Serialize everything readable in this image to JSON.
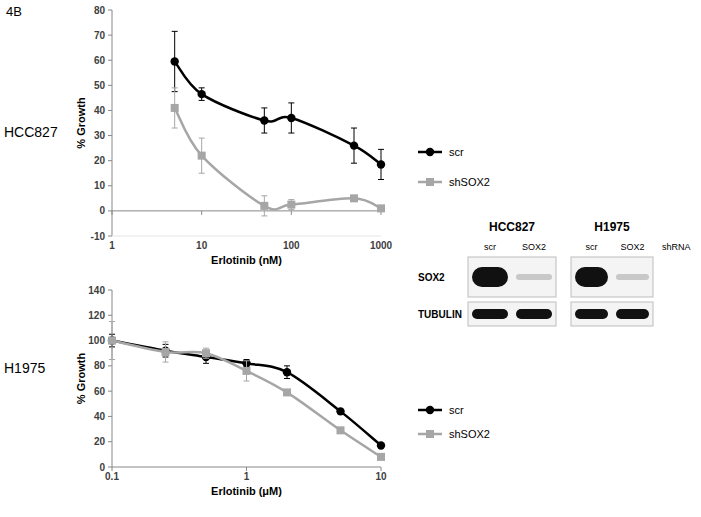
{
  "panel_label": "4B",
  "chart_data": [
    {
      "type": "line",
      "title": "HCC827",
      "x_label": "Erlotinib (nM)",
      "y_label": "% Growth",
      "log": "x",
      "grid": false,
      "legend": "right",
      "xlim": [
        1,
        1000
      ],
      "xticks": [
        1,
        10,
        100,
        1000
      ],
      "ylim": [
        -10,
        80
      ],
      "yticks": [
        -10,
        0,
        10,
        20,
        30,
        40,
        50,
        60,
        70,
        80
      ],
      "x": [
        5,
        10,
        50,
        100,
        500,
        1000
      ],
      "series": [
        {
          "name": "scr",
          "color": "#000000",
          "marker": "circle",
          "line_style": "solid",
          "values": [
            59.5,
            46.5,
            36,
            37,
            26,
            18.5
          ],
          "errors": [
            12,
            2.5,
            5,
            6,
            7,
            6
          ]
        },
        {
          "name": "shSOX2",
          "color": "#a6a6a6",
          "marker": "square",
          "line_style": "solid",
          "values": [
            41,
            22,
            2,
            2.5,
            5,
            1
          ],
          "errors": [
            8,
            7,
            4,
            2,
            0.5,
            1
          ]
        }
      ]
    },
    {
      "type": "line",
      "title": "H1975",
      "x_label": "Erlotinib (μM)",
      "y_label": "% Growth",
      "log": "x",
      "grid": false,
      "legend": "right",
      "xlim": [
        0.1,
        10
      ],
      "xticks": [
        0.1,
        1,
        10
      ],
      "ylim": [
        0,
        140
      ],
      "yticks": [
        0,
        20,
        40,
        60,
        80,
        100,
        120,
        140
      ],
      "x": [
        0.1,
        0.25,
        0.5,
        1,
        2,
        5,
        10
      ],
      "series": [
        {
          "name": "scr",
          "color": "#000000",
          "marker": "circle",
          "line_style": "solid",
          "values": [
            100,
            92,
            87,
            82,
            75,
            44,
            17
          ],
          "errors": [
            5,
            5,
            5,
            3,
            5,
            1,
            1
          ]
        },
        {
          "name": "shSOX2",
          "color": "#a6a6a6",
          "marker": "square",
          "line_style": "solid",
          "values": [
            100,
            91,
            90,
            76,
            59,
            29,
            8
          ],
          "errors": [
            15,
            8,
            4,
            8,
            2,
            1,
            2
          ]
        }
      ]
    }
  ],
  "blot": {
    "cell_lines": [
      {
        "name": "HCC827",
        "lanes": [
          "scr",
          "SOX2"
        ]
      },
      {
        "name": "H1975",
        "lanes": [
          "scr",
          "SOX2"
        ]
      }
    ],
    "lane_group_label": "shRNA",
    "rows": [
      "SOX2",
      "TUBULIN"
    ]
  }
}
